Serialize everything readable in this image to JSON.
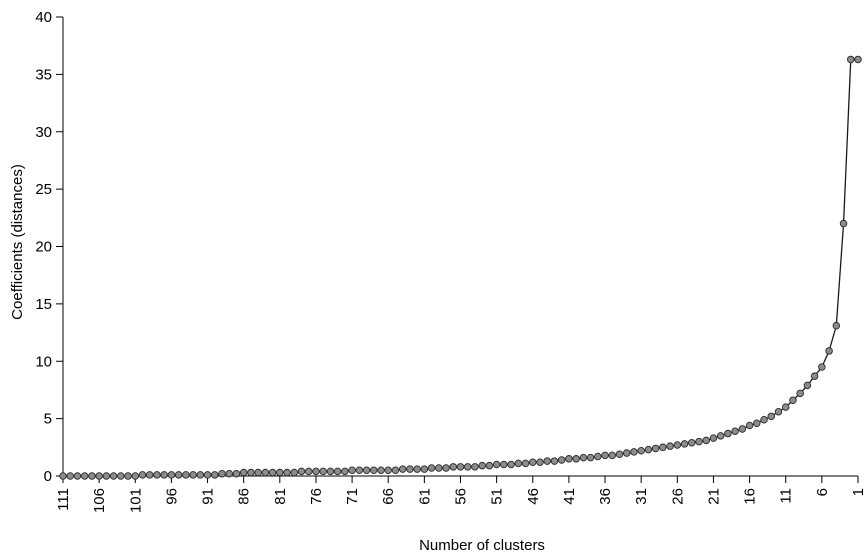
{
  "chart_data": {
    "type": "line",
    "xlabel": "Number of clusters",
    "ylabel": "Coefficients (distances)",
    "x_axis": {
      "direction": "descending",
      "range": [
        111,
        1
      ],
      "tick_labels": [
        "111",
        "106",
        "101",
        "96",
        "91",
        "86",
        "81",
        "76",
        "71",
        "66",
        "61",
        "56",
        "51",
        "46",
        "41",
        "36",
        "31",
        "26",
        "21",
        "16",
        "11",
        "6",
        "1"
      ]
    },
    "y_axis": {
      "range": [
        0,
        40
      ],
      "tick_labels": [
        "0",
        "5",
        "10",
        "15",
        "20",
        "25",
        "30",
        "35",
        "40"
      ]
    },
    "grid": false,
    "legend": "none",
    "series": [
      {
        "marker_color": "#8c8c8c",
        "line_color": "#1a1a1a",
        "x": [
          111,
          110,
          109,
          108,
          107,
          106,
          105,
          104,
          103,
          102,
          101,
          100,
          99,
          98,
          97,
          96,
          95,
          94,
          93,
          92,
          91,
          90,
          89,
          88,
          87,
          86,
          85,
          84,
          83,
          82,
          81,
          80,
          79,
          78,
          77,
          76,
          75,
          74,
          73,
          72,
          71,
          70,
          69,
          68,
          67,
          66,
          65,
          64,
          63,
          62,
          61,
          60,
          59,
          58,
          57,
          56,
          55,
          54,
          53,
          52,
          51,
          50,
          49,
          48,
          47,
          46,
          45,
          44,
          43,
          42,
          41,
          40,
          39,
          38,
          37,
          36,
          35,
          34,
          33,
          32,
          31,
          30,
          29,
          28,
          27,
          26,
          25,
          24,
          23,
          22,
          21,
          20,
          19,
          18,
          17,
          16,
          15,
          14,
          13,
          12,
          11,
          10,
          9,
          8,
          7,
          6,
          5,
          4,
          3,
          2,
          1
        ],
        "values": [
          0.0,
          0.0,
          0.0,
          0.0,
          0.0,
          0.0,
          0.0,
          0.0,
          0.0,
          0.0,
          0.0,
          0.1,
          0.1,
          0.1,
          0.1,
          0.1,
          0.1,
          0.1,
          0.1,
          0.1,
          0.1,
          0.1,
          0.2,
          0.2,
          0.2,
          0.3,
          0.3,
          0.3,
          0.3,
          0.3,
          0.3,
          0.3,
          0.3,
          0.4,
          0.4,
          0.4,
          0.4,
          0.4,
          0.4,
          0.4,
          0.5,
          0.5,
          0.5,
          0.5,
          0.5,
          0.5,
          0.5,
          0.6,
          0.6,
          0.6,
          0.6,
          0.7,
          0.7,
          0.7,
          0.8,
          0.8,
          0.8,
          0.8,
          0.9,
          0.9,
          1.0,
          1.0,
          1.0,
          1.1,
          1.1,
          1.2,
          1.2,
          1.3,
          1.3,
          1.4,
          1.5,
          1.5,
          1.6,
          1.6,
          1.7,
          1.8,
          1.8,
          1.9,
          2.0,
          2.1,
          2.2,
          2.3,
          2.4,
          2.5,
          2.6,
          2.7,
          2.8,
          2.9,
          3.0,
          3.1,
          3.3,
          3.5,
          3.7,
          3.9,
          4.1,
          4.4,
          4.6,
          4.9,
          5.2,
          5.6,
          6.0,
          6.6,
          7.2,
          7.9,
          8.7,
          9.5,
          10.9,
          13.1,
          22.0,
          36.3,
          36.3
        ]
      }
    ]
  }
}
